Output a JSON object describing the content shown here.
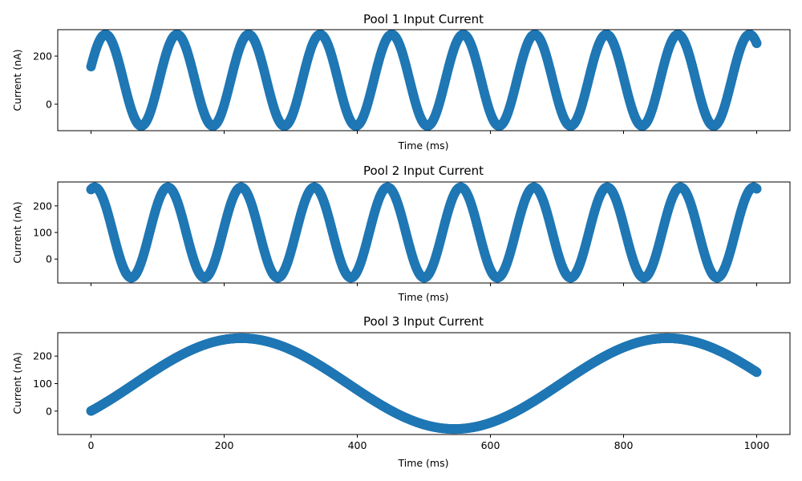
{
  "chart_data": [
    {
      "type": "scatter",
      "title": "Pool 1 Input Current",
      "xlabel": "Time (ms)",
      "ylabel": "Current (nA)",
      "xlim": [
        -50,
        1050
      ],
      "ylim": [
        -110,
        310
      ],
      "xticks": [
        0,
        200,
        400,
        600,
        800,
        1000
      ],
      "show_xtick_labels": false,
      "yticks": [
        0,
        200
      ],
      "grid": false,
      "marker_color": "#1f77b4",
      "series": [
        {
          "x_start": 0,
          "x_end": 1000,
          "mean": 100,
          "amplitude": 190,
          "period_ms": 107.5,
          "phase_rad": 0.302,
          "point_count": 1001
        }
      ]
    },
    {
      "type": "scatter",
      "title": "Pool 2 Input Current",
      "xlabel": "Time (ms)",
      "ylabel": "Current (nA)",
      "xlim": [
        -50,
        1050
      ],
      "ylim": [
        -90,
        290
      ],
      "xticks": [
        0,
        200,
        400,
        600,
        800,
        1000
      ],
      "show_xtick_labels": false,
      "yticks": [
        0,
        100,
        200
      ],
      "grid": false,
      "marker_color": "#1f77b4",
      "series": [
        {
          "x_start": 0,
          "x_end": 1000,
          "mean": 100,
          "amplitude": 170,
          "period_ms": 110,
          "phase_rad": 1.26,
          "point_count": 1001
        }
      ]
    },
    {
      "type": "scatter",
      "title": "Pool 3 Input Current",
      "xlabel": "Time (ms)",
      "ylabel": "Current (nA)",
      "xlim": [
        -50,
        1050
      ],
      "ylim": [
        -85,
        285
      ],
      "xticks": [
        0,
        200,
        400,
        600,
        800,
        1000
      ],
      "show_xtick_labels": true,
      "yticks": [
        0,
        100,
        200
      ],
      "grid": false,
      "marker_color": "#1f77b4",
      "series": [
        {
          "x_start": 0,
          "x_end": 1000,
          "mean": 100,
          "amplitude": 165,
          "period_ms": 640,
          "phase_rad": -0.647,
          "point_count": 1001
        }
      ]
    }
  ]
}
